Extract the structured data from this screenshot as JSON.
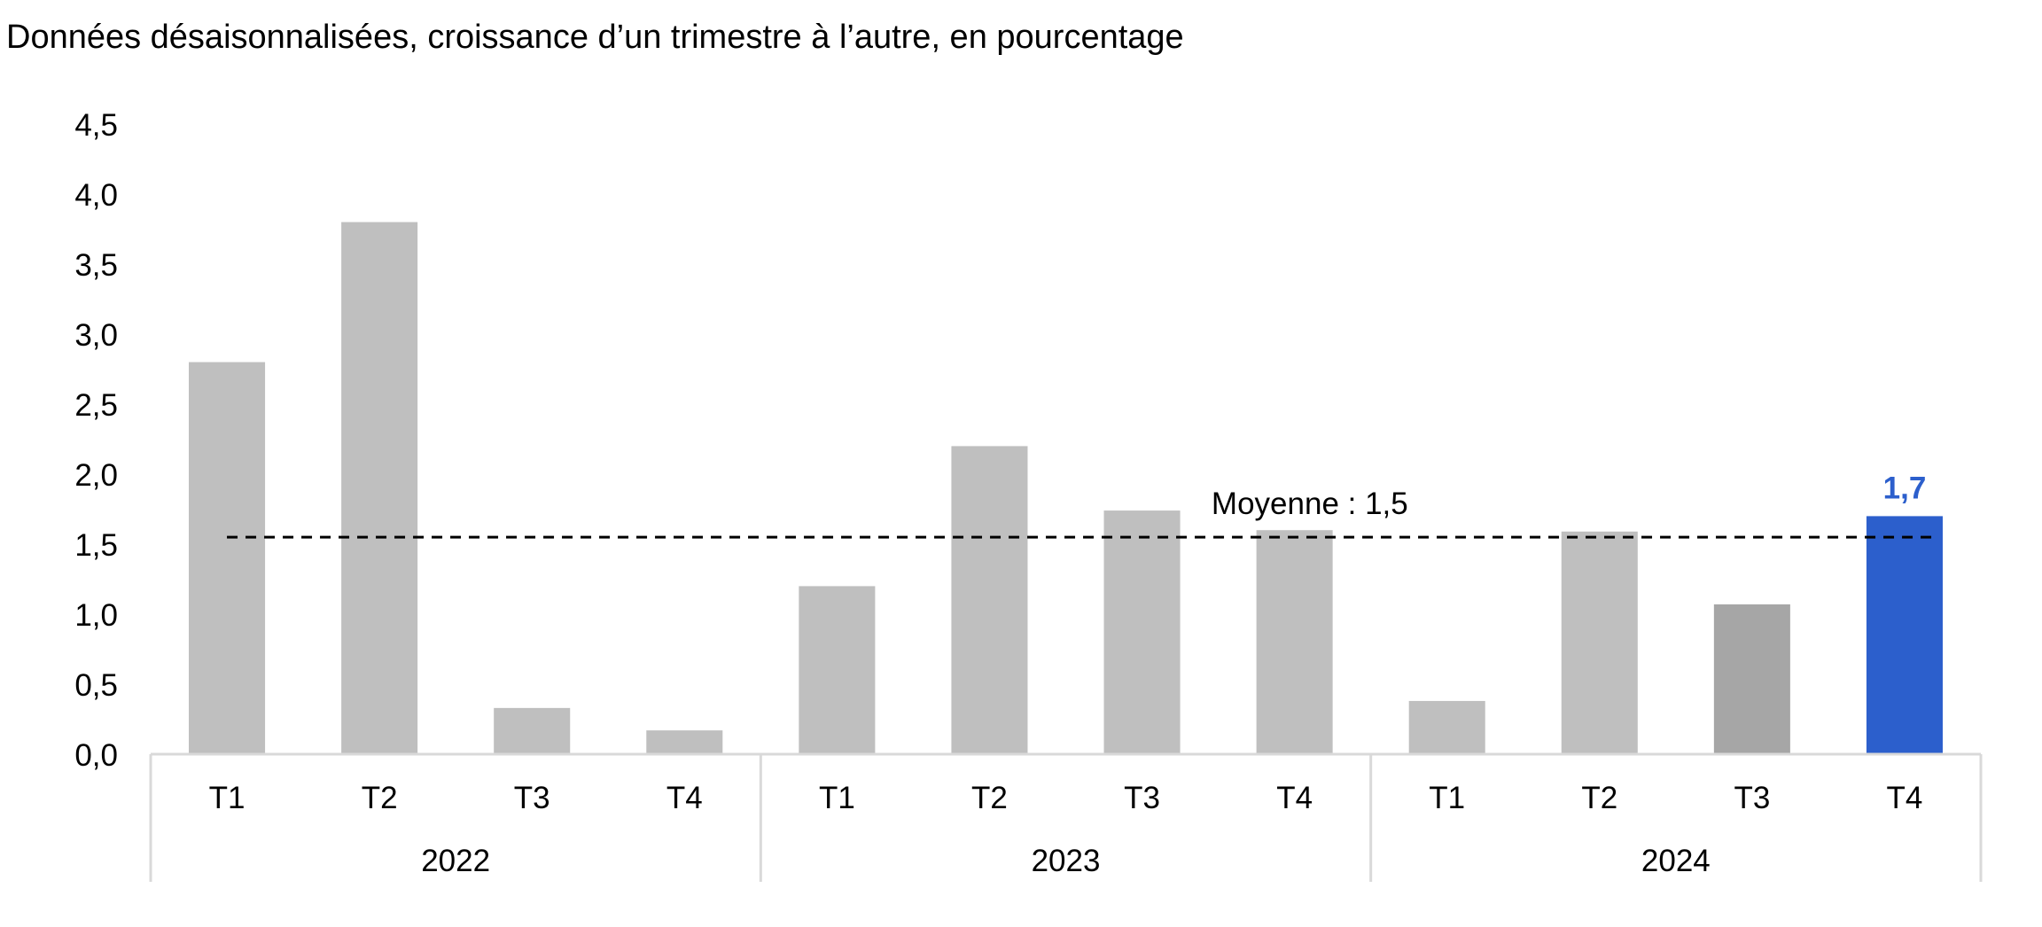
{
  "chart_data": {
    "type": "bar",
    "subtitle": "Données désaisonnalisées, croissance d’un trimestre à l’autre, en pourcentage",
    "ylim": [
      0,
      4.5
    ],
    "y_ticks": [
      "0,0",
      "0,5",
      "1,0",
      "1,5",
      "2,0",
      "2,5",
      "3,0",
      "3,5",
      "4,0",
      "4,5"
    ],
    "grid": false,
    "groups": [
      {
        "label": "2022",
        "categories": [
          "T1",
          "T2",
          "T3",
          "T4"
        ]
      },
      {
        "label": "2023",
        "categories": [
          "T1",
          "T2",
          "T3",
          "T4"
        ]
      },
      {
        "label": "2024",
        "categories": [
          "T1",
          "T2",
          "T3",
          "T4"
        ]
      }
    ],
    "values": [
      2.8,
      3.8,
      0.33,
      0.17,
      1.2,
      2.2,
      1.74,
      1.6,
      0.38,
      1.59,
      1.07,
      1.7
    ],
    "bar_colors": [
      "#bfbfbf",
      "#bfbfbf",
      "#bfbfbf",
      "#bfbfbf",
      "#bfbfbf",
      "#bfbfbf",
      "#bfbfbf",
      "#bfbfbf",
      "#bfbfbf",
      "#bfbfbf",
      "#a6a6a6",
      "#2c5fcc"
    ],
    "highlight": {
      "index": 11,
      "label": "1,7",
      "color": "#2c5fcc"
    },
    "average_line": {
      "value": 1.55,
      "label": "Moyenne : 1,5"
    },
    "axis_color": "#d9d9d9"
  }
}
